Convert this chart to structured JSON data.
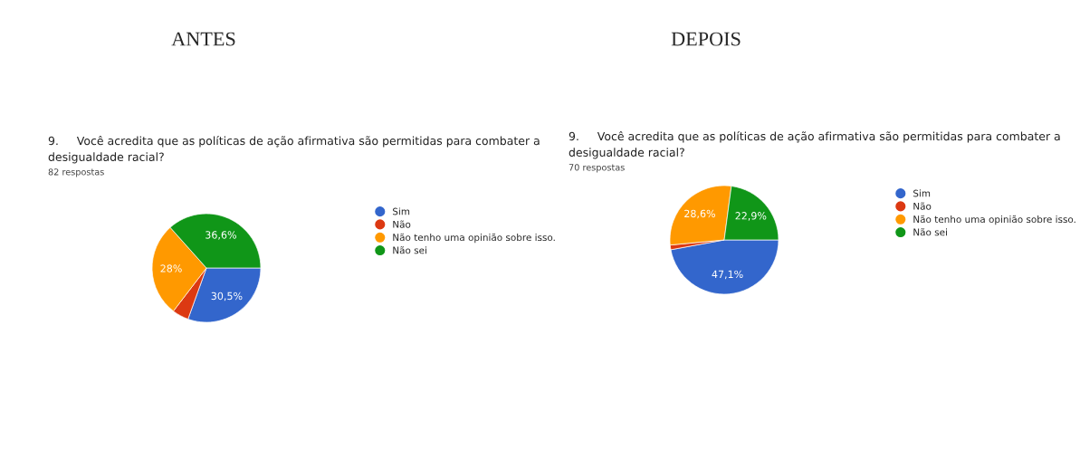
{
  "chart_data": [
    {
      "type": "pie",
      "title": "ANTES",
      "subtitle": "9.     Você acredita que as políticas de ação afirmativa são permitidas para combater a\ndesigualdade racial?",
      "annotations": [
        "82 respostas"
      ],
      "categories": [
        "Sim",
        "Não",
        "Não tenho uma opinião sobre isso.",
        "Não sei"
      ],
      "values": [
        30.5,
        4.9,
        28,
        36.6
      ],
      "value_labels": [
        "30,5%",
        null,
        "28%",
        "36,6%"
      ],
      "colors": [
        "#3366cc",
        "#dc3912",
        "#ff9900",
        "#109618"
      ],
      "legend": "right"
    },
    {
      "type": "pie",
      "title": "DEPOIS",
      "subtitle": "9.     Você acredita que as políticas de ação afirmativa são permitidas para combater a\ndesigualdade racial?",
      "annotations": [
        "70 respostas"
      ],
      "categories": [
        "Sim",
        "Não",
        "Não tenho uma opinião sobre isso.",
        "Não sei"
      ],
      "values": [
        47.1,
        1.4,
        28.6,
        22.9
      ],
      "value_labels": [
        "47,1%",
        null,
        "28,6%",
        "22,9%"
      ],
      "colors": [
        "#3366cc",
        "#dc3912",
        "#ff9900",
        "#109618"
      ],
      "legend": "right"
    }
  ]
}
